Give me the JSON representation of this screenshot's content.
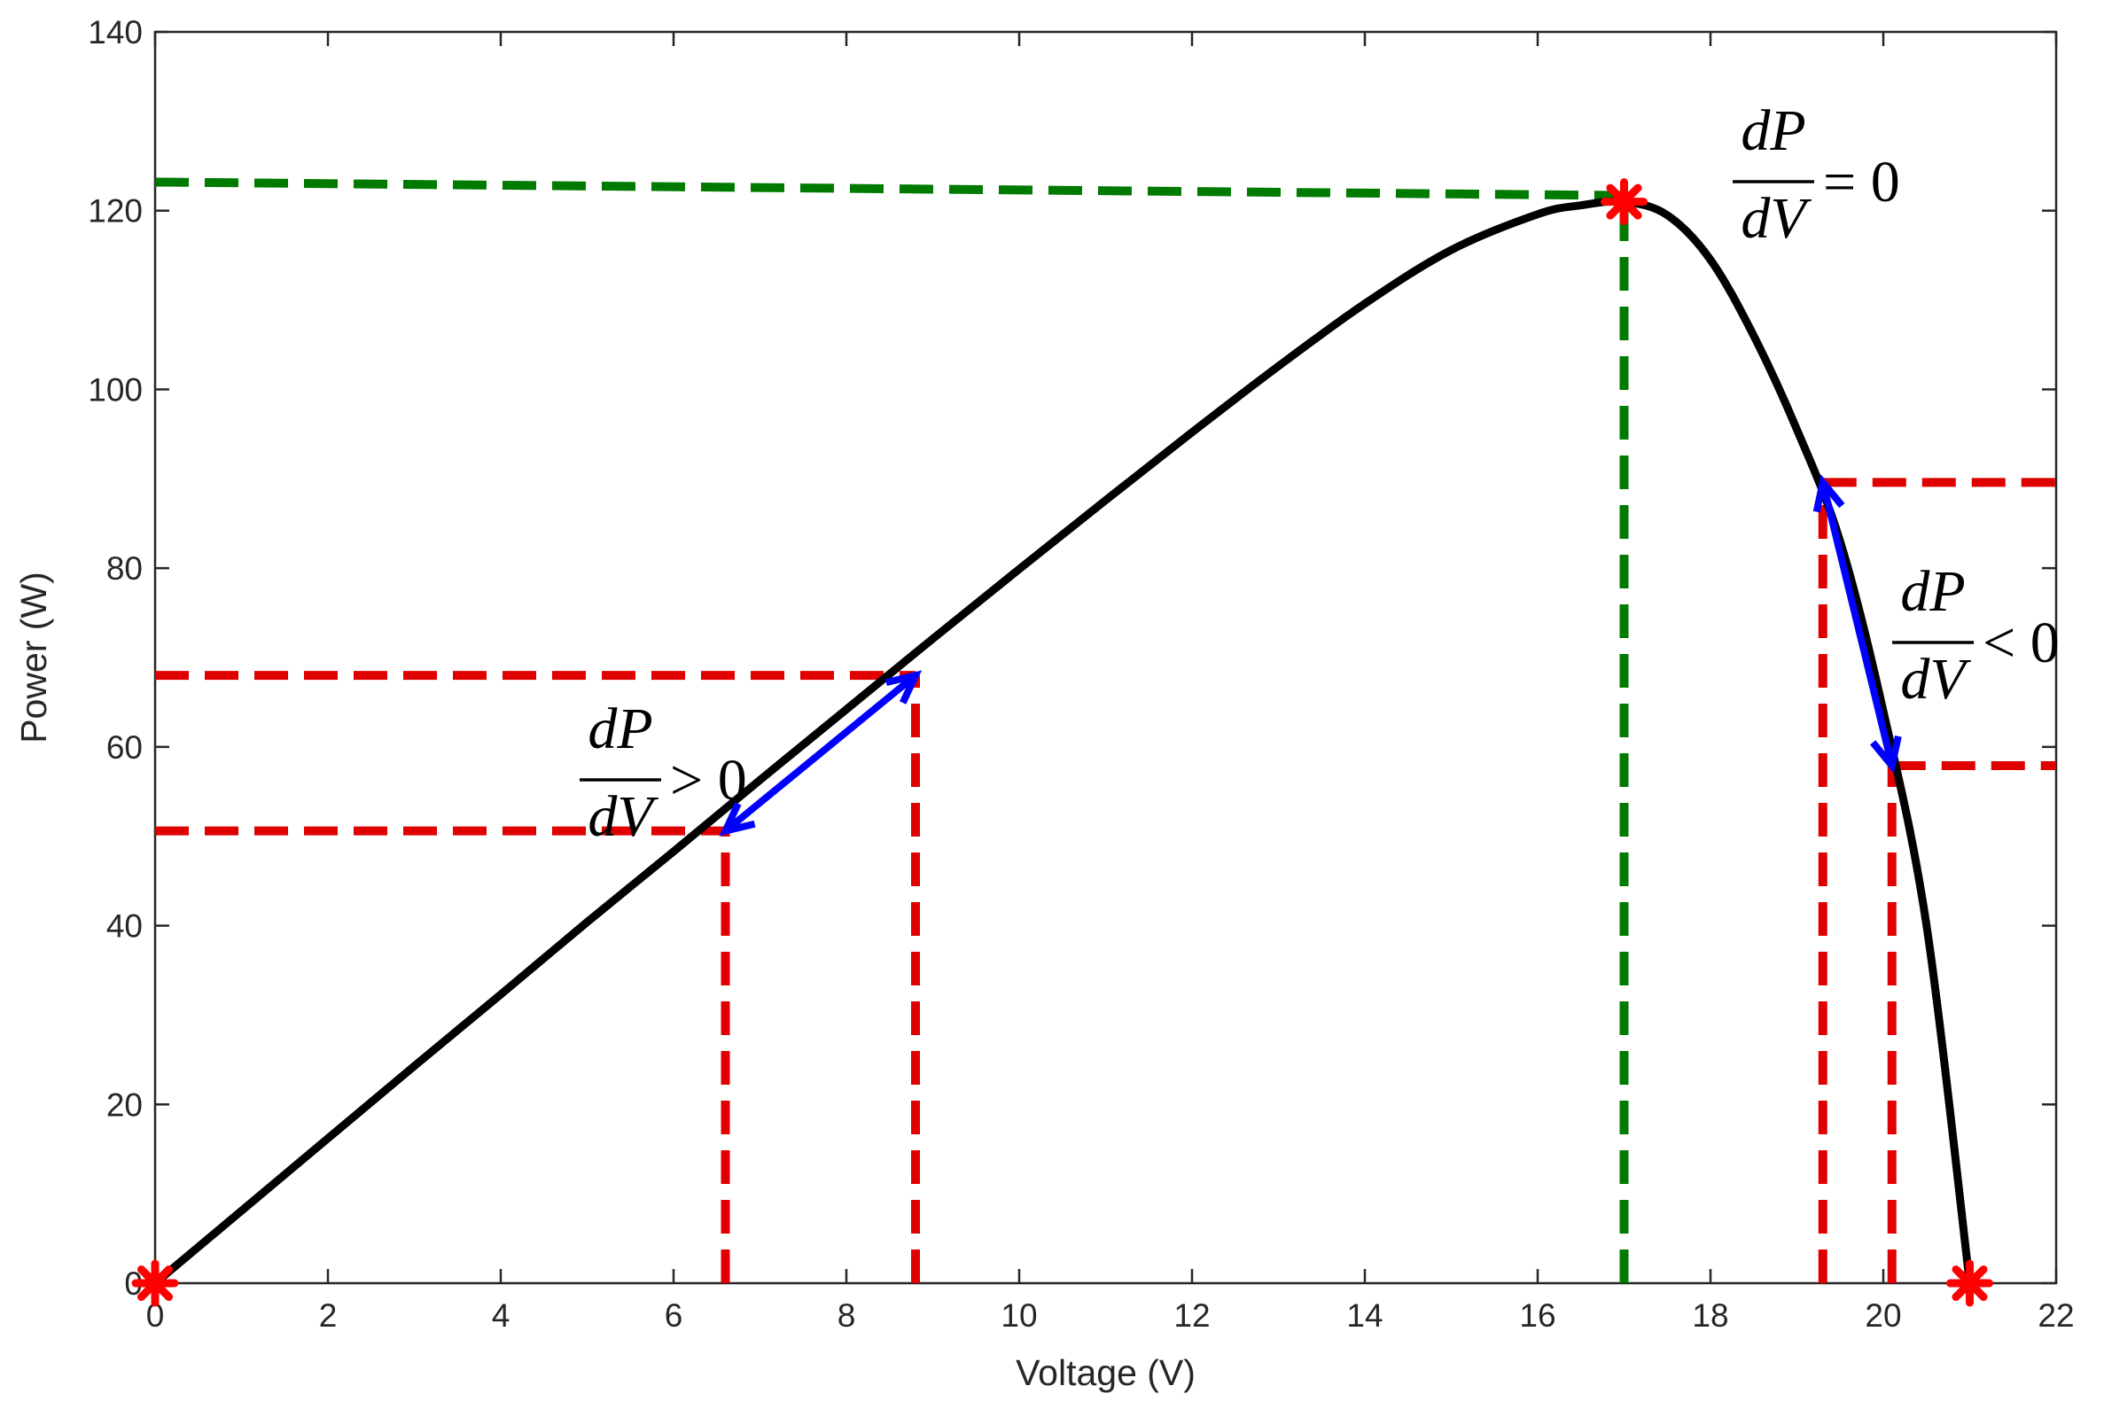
{
  "chart_data": {
    "type": "line",
    "xlabel": "Voltage (V)",
    "ylabel": "Power (W)",
    "xlim": [
      0,
      22
    ],
    "ylim": [
      0,
      140
    ],
    "xticks": [
      0,
      2,
      4,
      6,
      8,
      10,
      12,
      14,
      16,
      18,
      20,
      22
    ],
    "yticks": [
      0,
      20,
      40,
      60,
      80,
      100,
      120,
      140
    ],
    "grid": false,
    "box": true,
    "series": [
      {
        "color": "#000000",
        "points": [
          [
            0,
            0
          ],
          [
            1,
            8.1
          ],
          [
            2,
            16.2
          ],
          [
            3,
            24.3
          ],
          [
            4,
            32.3
          ],
          [
            5,
            40.4
          ],
          [
            6,
            48.3
          ],
          [
            7,
            56.3
          ],
          [
            8,
            64.2
          ],
          [
            9,
            72.1
          ],
          [
            10,
            79.9
          ],
          [
            11,
            87.6
          ],
          [
            12,
            95.2
          ],
          [
            13,
            102.6
          ],
          [
            14,
            109.6
          ],
          [
            15,
            115.6
          ],
          [
            16,
            119.6
          ],
          [
            16.5,
            120.6
          ],
          [
            17,
            121
          ],
          [
            17.5,
            119.5
          ],
          [
            18,
            114.5
          ],
          [
            18.5,
            106
          ],
          [
            19,
            95.5
          ],
          [
            19.5,
            83
          ],
          [
            20,
            64
          ],
          [
            20.5,
            40
          ],
          [
            21,
            0
          ]
        ]
      }
    ],
    "markers": [
      {
        "x": 0,
        "y": 0,
        "symbol": "asterisk",
        "color": "#ff0000"
      },
      {
        "x": 17,
        "y": 121,
        "symbol": "asterisk",
        "color": "#ff0000"
      },
      {
        "x": 21,
        "y": 0,
        "symbol": "asterisk",
        "color": "#ff0000"
      }
    ],
    "guides": [
      {
        "orientation": "h",
        "y0": 123.2,
        "y1": 121.7,
        "x0": 0,
        "x1": 17,
        "color": "#007a00"
      },
      {
        "orientation": "v",
        "x": 17,
        "y0": 0,
        "y1": 121,
        "color": "#007a00"
      },
      {
        "orientation": "h",
        "y": 68,
        "x0": 0,
        "x1": 8.8,
        "color": "#e00000"
      },
      {
        "orientation": "h",
        "y": 50.6,
        "x0": 0,
        "x1": 6.6,
        "color": "#e00000"
      },
      {
        "orientation": "v",
        "x": 8.8,
        "y0": 0,
        "y1": 68,
        "color": "#e00000"
      },
      {
        "orientation": "v",
        "x": 6.6,
        "y0": 0,
        "y1": 50.6,
        "color": "#e00000"
      },
      {
        "orientation": "h",
        "y": 89.6,
        "x0": 19.3,
        "x1": 22,
        "color": "#e00000"
      },
      {
        "orientation": "h",
        "y": 57.9,
        "x0": 20.1,
        "x1": 22,
        "color": "#e00000"
      },
      {
        "orientation": "v",
        "x": 19.3,
        "y0": 0,
        "y1": 89.6,
        "color": "#e00000"
      },
      {
        "orientation": "v",
        "x": 20.1,
        "y0": 0,
        "y1": 57.9,
        "color": "#e00000"
      }
    ],
    "arrows": [
      {
        "x0": 6.6,
        "y0": 50.6,
        "x1": 8.8,
        "y1": 68,
        "color": "#0000ff",
        "heads": "both"
      },
      {
        "x0": 19.3,
        "y0": 89.6,
        "x1": 20.1,
        "y1": 57.9,
        "color": "#0000ff",
        "heads": "both"
      }
    ],
    "annotations": [
      {
        "numerator": "dP",
        "denominator": "dV",
        "relation": "> 0",
        "anchor": "left-slope"
      },
      {
        "numerator": "dP",
        "denominator": "dV",
        "relation": "= 0",
        "anchor": "peak"
      },
      {
        "numerator": "dP",
        "denominator": "dV",
        "relation": "< 0",
        "anchor": "right-slope"
      }
    ]
  }
}
